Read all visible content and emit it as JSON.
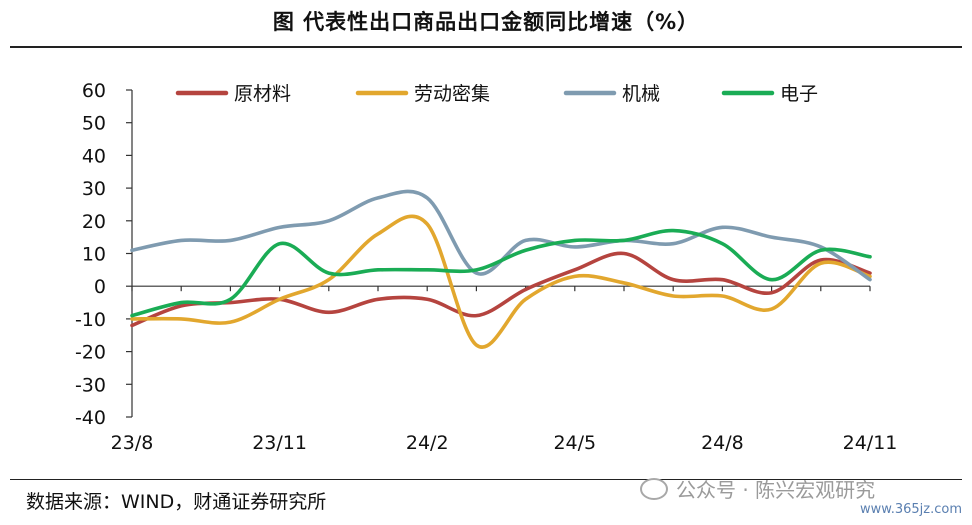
{
  "title": "图 代表性出口商品出口金额同比增速（%）",
  "source": "数据来源：WIND，财通证券研究所",
  "watermark": "公众号 · 陈兴宏观研究",
  "site": "www.365jz.com",
  "chart_data": {
    "type": "line",
    "ylim": [
      -40,
      60
    ],
    "yticks": [
      -40,
      -30,
      -20,
      -10,
      0,
      10,
      20,
      30,
      40,
      50,
      60
    ],
    "x": [
      "23/8",
      "23/9",
      "23/10",
      "23/11",
      "23/12",
      "24/1",
      "24/2",
      "24/3",
      "24/4",
      "24/5",
      "24/6",
      "24/7",
      "24/8",
      "24/9",
      "24/10",
      "24/11"
    ],
    "xtick_labels": [
      "23/8",
      "23/11",
      "24/2",
      "24/5",
      "24/8",
      "24/11"
    ],
    "legend_position": "top",
    "series": [
      {
        "name": "原材料",
        "color": "#b5443f",
        "values": [
          -12,
          -6,
          -5,
          -4,
          -8,
          -4,
          -4,
          -9,
          -1,
          5,
          10,
          2,
          2,
          -2,
          8,
          4
        ]
      },
      {
        "name": "劳动密集",
        "color": "#e2a72e",
        "values": [
          -10,
          -10,
          -11,
          -4,
          2,
          16,
          19,
          -18,
          -4,
          3,
          1,
          -3,
          -3,
          -7,
          7,
          3
        ]
      },
      {
        "name": "机械",
        "color": "#7f9bb0",
        "values": [
          11,
          14,
          14,
          18,
          20,
          27,
          27,
          4,
          14,
          12,
          14,
          13,
          18,
          15,
          12,
          2
        ]
      },
      {
        "name": "电子",
        "color": "#1aac55",
        "values": [
          -9,
          -5,
          -4,
          13,
          4,
          5,
          5,
          5,
          11,
          14,
          14,
          17,
          13,
          2,
          11,
          9
        ]
      }
    ]
  }
}
